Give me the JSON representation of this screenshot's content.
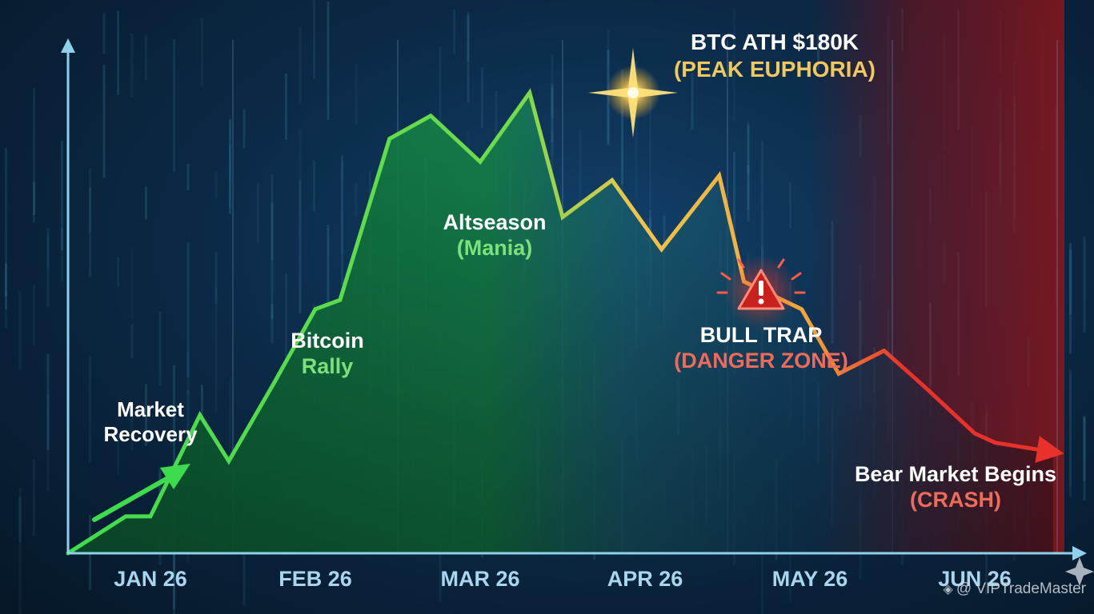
{
  "chart_data": {
    "type": "line",
    "categories": [
      "JAN 26",
      "FEB 26",
      "MAR 26",
      "APR 26",
      "MAY 26",
      "JUN 26"
    ],
    "x": [
      0.0,
      0.7,
      1.0,
      1.6,
      1.95,
      2.5,
      3.0,
      3.3,
      3.9,
      4.4,
      5.0,
      5.6,
      6.0,
      6.6,
      7.2,
      7.9,
      8.2,
      8.9,
      9.35,
      9.9,
      10.4,
      11.0,
      11.25,
      11.95
    ],
    "series": [
      {
        "values": [
          0,
          8,
          8,
          30,
          20,
          37,
          53,
          55,
          90,
          95,
          85,
          100,
          73,
          81,
          66,
          82,
          59,
          53,
          39,
          44,
          36,
          26,
          24,
          22
        ]
      }
    ],
    "annotations": [
      {
        "id": "market_recovery",
        "line1": "Market",
        "line2": "Recovery"
      },
      {
        "id": "bitcoin_rally",
        "line1": "Bitcoin",
        "line2": "Rally"
      },
      {
        "id": "altseason",
        "line1": "Altseason",
        "line2": "(Mania)"
      },
      {
        "id": "btc_ath",
        "line1": "BTC ATH $180K",
        "line2": "(PEAK EUPHORIA)"
      },
      {
        "id": "bull_trap",
        "line1": "BULL TRAP",
        "line2": "(DANGER ZONE)"
      },
      {
        "id": "bear_market",
        "line1": "Bear Market Begins",
        "line2": "(CRASH)"
      }
    ],
    "grid": true,
    "xlabel": "",
    "ylabel": ""
  },
  "colors": {
    "green": "#3ddc4e",
    "gold": "#f2c44a",
    "red": "#e8312a",
    "axis": "#8fd1ea",
    "white": "#ffffff",
    "label_green": "#7ee07a",
    "label_gold": "#f0c860",
    "label_red": "#f06a5a"
  },
  "watermark": {
    "icon": "diamond-logo-icon",
    "text": "@ VIPTradeMaster"
  }
}
